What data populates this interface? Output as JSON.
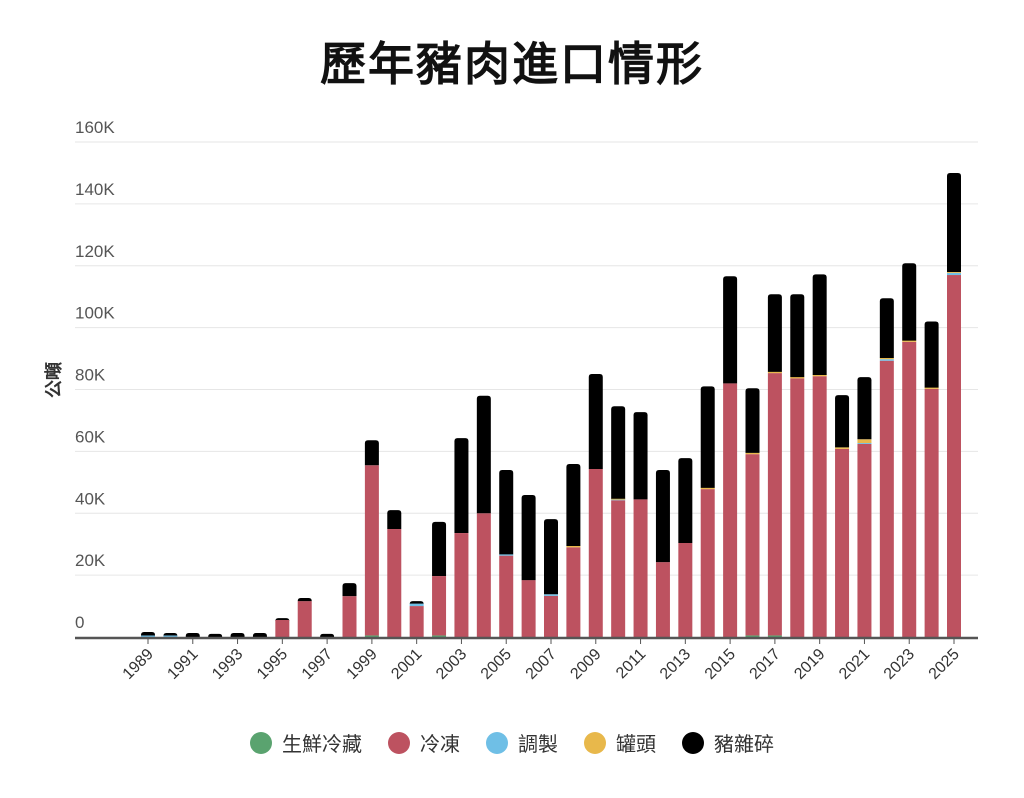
{
  "chart_data": {
    "type": "bar",
    "stacked": true,
    "title": "歷年豬肉進口情形",
    "ylabel": "公噸",
    "xlabel": "",
    "ylim": [
      0,
      160000
    ],
    "yticks": [
      "0",
      "20K",
      "40K",
      "60K",
      "80K",
      "100K",
      "120K",
      "140K",
      "160K"
    ],
    "grid": true,
    "legend_position": "bottom",
    "categories": [
      "1989",
      "1990",
      "1991",
      "1992",
      "1993",
      "1994",
      "1995",
      "1996",
      "1997",
      "1998",
      "1999",
      "2000",
      "2001",
      "2002",
      "2003",
      "2004",
      "2005",
      "2006",
      "2007",
      "2008",
      "2009",
      "2010",
      "2011",
      "2012",
      "2013",
      "2014",
      "2015",
      "2016",
      "2017",
      "2018",
      "2019",
      "2020",
      "2021",
      "2022",
      "2023",
      "2024",
      "2025"
    ],
    "xtick_labels": [
      "1989",
      "1991",
      "1993",
      "1995",
      "1997",
      "1999",
      "2001",
      "2003",
      "2005",
      "2007",
      "2009",
      "2011",
      "2013",
      "2015",
      "2017",
      "2019",
      "2021",
      "2023",
      "2025"
    ],
    "series": [
      {
        "name": "生鮮冷藏",
        "color": "#5aa36f",
        "values": [
          0,
          0,
          0,
          0,
          0,
          0,
          0,
          0,
          0,
          0,
          500,
          0,
          0,
          500,
          0,
          0,
          0,
          0,
          0,
          0,
          0,
          0,
          0,
          0,
          0,
          0,
          0,
          500,
          500,
          0,
          0,
          0,
          0,
          0,
          0,
          0,
          0
        ]
      },
      {
        "name": "冷凍",
        "color": "#bd5260",
        "values": [
          0,
          0,
          0,
          0,
          0,
          0,
          5500,
          11600,
          0,
          13200,
          55000,
          34900,
          10000,
          19200,
          33600,
          40000,
          26300,
          18400,
          13300,
          29000,
          54300,
          44200,
          44500,
          24200,
          30400,
          47800,
          82000,
          58600,
          84800,
          83600,
          84300,
          60800,
          62400,
          89300,
          95400,
          80200,
          117000
        ]
      },
      {
        "name": "調製",
        "color": "#6fbfe6",
        "values": [
          500,
          500,
          0,
          0,
          0,
          0,
          0,
          0,
          0,
          0,
          0,
          0,
          800,
          0,
          0,
          0,
          400,
          0,
          500,
          0,
          0,
          200,
          0,
          0,
          0,
          0,
          0,
          0,
          0,
          0,
          0,
          0,
          300,
          500,
          0,
          0,
          700
        ]
      },
      {
        "name": "罐頭",
        "color": "#e8b84b",
        "values": [
          0,
          0,
          0,
          0,
          0,
          0,
          0,
          0,
          0,
          0,
          0,
          0,
          0,
          0,
          0,
          0,
          0,
          0,
          0,
          400,
          0,
          300,
          0,
          0,
          0,
          400,
          0,
          400,
          400,
          400,
          400,
          500,
          1200,
          400,
          400,
          400,
          300
        ]
      },
      {
        "name": "豬雜碎",
        "color": "#000000",
        "values": [
          1100,
          800,
          1300,
          1000,
          1300,
          1300,
          600,
          1000,
          1000,
          4200,
          8100,
          6100,
          800,
          17500,
          30700,
          38000,
          27300,
          27500,
          24300,
          26500,
          30700,
          29900,
          28200,
          29800,
          27400,
          32800,
          34600,
          20900,
          25100,
          26800,
          32500,
          16900,
          20100,
          19300,
          25000,
          21400,
          32000
        ]
      }
    ]
  }
}
